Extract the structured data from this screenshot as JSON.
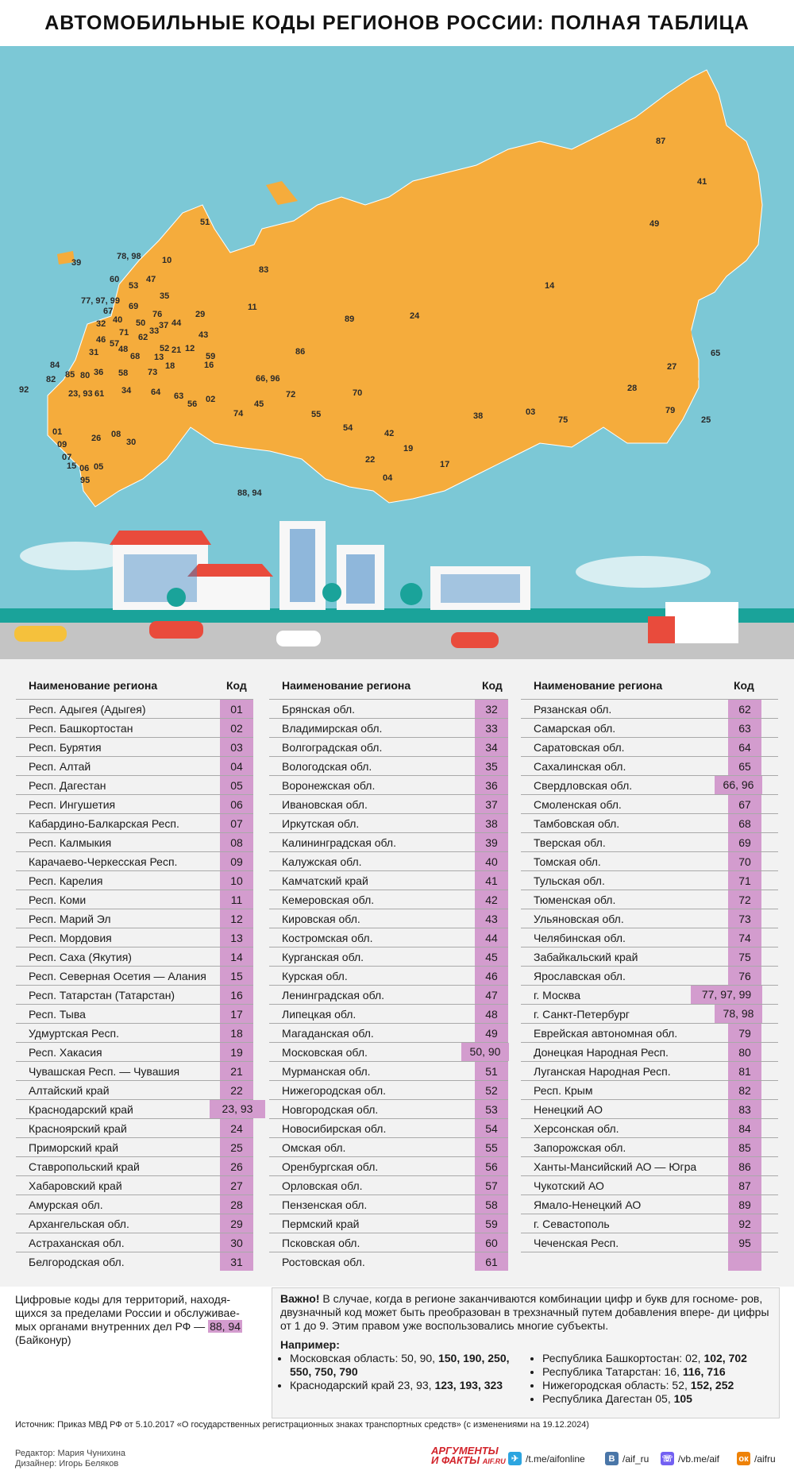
{
  "title": "АВТОМОБИЛЬНЫЕ КОДЫ РЕГИОНОВ РОССИИ: ПОЛНАЯ ТАБЛИЦА",
  "colors": {
    "map_bg": "#7cc8d6",
    "land": "#f5ac3c",
    "code_highlight": "#d39cce",
    "road": "#c4c4c4"
  },
  "map": {
    "labels": [
      "87",
      "41",
      "49",
      "14",
      "65",
      "27",
      "28",
      "79",
      "25",
      "75",
      "03",
      "38",
      "17",
      "19",
      "42",
      "22",
      "04",
      "54",
      "70",
      "55",
      "72",
      "86",
      "89",
      "24",
      "11",
      "83",
      "29",
      "51",
      "39",
      "78, 98",
      "10",
      "60",
      "47",
      "53",
      "35",
      "77, 97, 99",
      "67",
      "69",
      "76",
      "32",
      "40",
      "50",
      "33",
      "44",
      "46",
      "57",
      "71",
      "62",
      "37",
      "31",
      "48",
      "68",
      "52",
      "13",
      "21",
      "12",
      "43",
      "84",
      "85",
      "80",
      "36",
      "58",
      "73",
      "18",
      "59",
      "82",
      "92",
      "23, 93",
      "61",
      "34",
      "64",
      "63",
      "16",
      "02",
      "56",
      "74",
      "45",
      "66, 96",
      "01",
      "09",
      "26",
      "08",
      "30",
      "07",
      "15",
      "06",
      "05",
      "95",
      "88, 94"
    ]
  },
  "table": {
    "columns": [
      {
        "header_name": "Наименование региона",
        "header_code": "Код",
        "rows": [
          {
            "name": "Респ. Адыгея (Адыгея)",
            "code": "01"
          },
          {
            "name": "Респ. Башкортостан",
            "code": "02"
          },
          {
            "name": "Респ. Бурятия",
            "code": "03"
          },
          {
            "name": "Респ. Алтай",
            "code": "04"
          },
          {
            "name": "Респ. Дагестан",
            "code": "05"
          },
          {
            "name": "Респ. Ингушетия",
            "code": "06"
          },
          {
            "name": "Кабардино-Балкарская Респ.",
            "code": "07"
          },
          {
            "name": "Респ. Калмыкия",
            "code": "08"
          },
          {
            "name": "Карачаево-Черкесская Респ.",
            "code": "09"
          },
          {
            "name": "Респ. Карелия",
            "code": "10"
          },
          {
            "name": "Респ. Коми",
            "code": "11"
          },
          {
            "name": "Респ. Марий Эл",
            "code": "12"
          },
          {
            "name": "Респ. Мордовия",
            "code": "13"
          },
          {
            "name": "Респ. Саха (Якутия)",
            "code": "14"
          },
          {
            "name": "Респ. Северная Осетия — Алания",
            "code": "15"
          },
          {
            "name": "Респ. Татарстан (Татарстан)",
            "code": "16"
          },
          {
            "name": "Респ. Тыва",
            "code": "17"
          },
          {
            "name": "Удмуртская Респ.",
            "code": "18"
          },
          {
            "name": "Респ. Хакасия",
            "code": "19"
          },
          {
            "name": "Чувашская Респ. — Чувашия",
            "code": "21"
          },
          {
            "name": "Алтайский край",
            "code": "22"
          },
          {
            "name": "Краснодарский край",
            "code": "23, 93"
          },
          {
            "name": "Красноярский край",
            "code": "24"
          },
          {
            "name": "Приморский край",
            "code": "25"
          },
          {
            "name": "Ставропольский край",
            "code": "26"
          },
          {
            "name": "Хабаровский край",
            "code": "27"
          },
          {
            "name": "Амурская обл.",
            "code": "28"
          },
          {
            "name": "Архангельская обл.",
            "code": "29"
          },
          {
            "name": "Астраханская обл.",
            "code": "30"
          },
          {
            "name": "Белгородская обл.",
            "code": "31"
          }
        ]
      },
      {
        "header_name": "Наименование региона",
        "header_code": "Код",
        "rows": [
          {
            "name": "Брянская обл.",
            "code": "32"
          },
          {
            "name": "Владимирская обл.",
            "code": "33"
          },
          {
            "name": "Волгоградская обл.",
            "code": "34"
          },
          {
            "name": "Вологодская обл.",
            "code": "35"
          },
          {
            "name": "Воронежская обл.",
            "code": "36"
          },
          {
            "name": "Ивановская обл.",
            "code": "37"
          },
          {
            "name": "Иркутская обл.",
            "code": "38"
          },
          {
            "name": "Калининградская обл.",
            "code": "39"
          },
          {
            "name": "Калужская обл.",
            "code": "40"
          },
          {
            "name": "Камчатский край",
            "code": "41"
          },
          {
            "name": "Кемеровская обл.",
            "code": "42"
          },
          {
            "name": "Кировская обл.",
            "code": "43"
          },
          {
            "name": "Костромская обл.",
            "code": "44"
          },
          {
            "name": "Курганская обл.",
            "code": "45"
          },
          {
            "name": "Курская обл.",
            "code": "46"
          },
          {
            "name": "Ленинградская обл.",
            "code": "47"
          },
          {
            "name": "Липецкая обл.",
            "code": "48"
          },
          {
            "name": "Магаданская обл.",
            "code": "49"
          },
          {
            "name": "Московская обл.",
            "code": "50, 90"
          },
          {
            "name": "Мурманская обл.",
            "code": "51"
          },
          {
            "name": "Нижегородская обл.",
            "code": "52"
          },
          {
            "name": "Новгородская обл.",
            "code": "53"
          },
          {
            "name": "Новосибирская обл.",
            "code": "54"
          },
          {
            "name": "Омская обл.",
            "code": "55"
          },
          {
            "name": "Оренбургская обл.",
            "code": "56"
          },
          {
            "name": "Орловская обл.",
            "code": "57"
          },
          {
            "name": "Пензенская обл.",
            "code": "58"
          },
          {
            "name": "Пермский край",
            "code": "59"
          },
          {
            "name": "Псковская обл.",
            "code": "60"
          },
          {
            "name": "Ростовская обл.",
            "code": "61"
          }
        ]
      },
      {
        "header_name": "Наименование региона",
        "header_code": "Код",
        "rows": [
          {
            "name": "Рязанская обл.",
            "code": "62"
          },
          {
            "name": "Самарская обл.",
            "code": "63"
          },
          {
            "name": "Саратовская обл.",
            "code": "64"
          },
          {
            "name": "Сахалинская обл.",
            "code": "65"
          },
          {
            "name": "Свердловская обл.",
            "code": "66, 96"
          },
          {
            "name": "Смоленская обл.",
            "code": "67"
          },
          {
            "name": "Тамбовская обл.",
            "code": "68"
          },
          {
            "name": "Тверская обл.",
            "code": "69"
          },
          {
            "name": "Томская обл.",
            "code": "70"
          },
          {
            "name": "Тульская обл.",
            "code": "71"
          },
          {
            "name": "Тюменская обл.",
            "code": "72"
          },
          {
            "name": "Ульяновская обл.",
            "code": "73"
          },
          {
            "name": "Челябинская обл.",
            "code": "74"
          },
          {
            "name": "Забайкальский край",
            "code": "75"
          },
          {
            "name": "Ярославская обл.",
            "code": "76"
          },
          {
            "name": "г. Москва",
            "code": "77, 97, 99"
          },
          {
            "name": "г. Санкт-Петербург",
            "code": "78, 98"
          },
          {
            "name": "Еврейская автономная обл.",
            "code": "79"
          },
          {
            "name": "Донецкая Народная Респ.",
            "code": "80"
          },
          {
            "name": "Луганская Народная Респ.",
            "code": "81"
          },
          {
            "name": "Респ. Крым",
            "code": "82"
          },
          {
            "name": "Ненецкий АО",
            "code": "83"
          },
          {
            "name": "Херсонская обл.",
            "code": "84"
          },
          {
            "name": "Запорожская обл.",
            "code": "85"
          },
          {
            "name": "Ханты-Мансийский АО — Югра",
            "code": "86"
          },
          {
            "name": "Чукотский АО",
            "code": "87"
          },
          {
            "name": "Ямало-Ненецкий АО",
            "code": "89"
          },
          {
            "name": "г. Севастополь",
            "code": "92"
          },
          {
            "name": "Чеченская Респ.",
            "code": "95"
          },
          {
            "name": "",
            "code": ""
          }
        ]
      }
    ]
  },
  "notes": {
    "left_text": "Цифровые коды для территорий, находя- щихся за пределами России и обслуживае- мых органами внутренних дел РФ —",
    "left_code": "88, 94",
    "left_tail": "(Байконур)",
    "important_label": "Важно!",
    "important_text": "В случае, когда в регионе заканчиваются комбинации цифр и букв для госноме- ров, двузначный код может быть преобразован в трехзначный путем добавления впере- ди цифры от 1 до 9. Этим правом уже воспользовались многие субъекты.",
    "example_title": "Например:",
    "examples_left": [
      {
        "plain": "Московская область: 50, 90, ",
        "bold": "150, 190, 250, 550, 750, 790"
      },
      {
        "plain": "Краснодарский край 23, 93, ",
        "bold": "123, 193, 323"
      }
    ],
    "examples_right": [
      {
        "plain": "Республика Башкортостан: 02, ",
        "bold": "102, 702"
      },
      {
        "plain": "Республика Татарстан: 16, ",
        "bold": "116, 716"
      },
      {
        "plain": "Нижегородская область: 52, ",
        "bold": "152, 252"
      },
      {
        "plain": "Республика Дагестан 05, ",
        "bold": "105"
      }
    ]
  },
  "source": "Источник: Приказ МВД РФ от 5.10.2017 «О государственных регистрационных знаках транспортных средств» (с изменениями на 19.12.2024)",
  "credits": {
    "editor": "Редактор: Мария Чунихина",
    "designer": "Дизайнер: Игорь Беляков"
  },
  "brand": {
    "line1": "АРГУМЕНТЫ",
    "line2": "И ФАКТЫ",
    "site": "AIF.RU"
  },
  "social": [
    {
      "icon": "telegram-icon",
      "label": "/t.me/aifonline",
      "color": "#2ca5e0",
      "glyph": "✈"
    },
    {
      "icon": "vk-icon",
      "label": "/aif_ru",
      "color": "#4a76a8",
      "glyph": "В"
    },
    {
      "icon": "viber-icon",
      "label": "/vb.me/aif",
      "color": "#7360f2",
      "glyph": "☏"
    },
    {
      "icon": "ok-icon",
      "label": "/aifru",
      "color": "#ee8208",
      "glyph": "ок"
    }
  ]
}
